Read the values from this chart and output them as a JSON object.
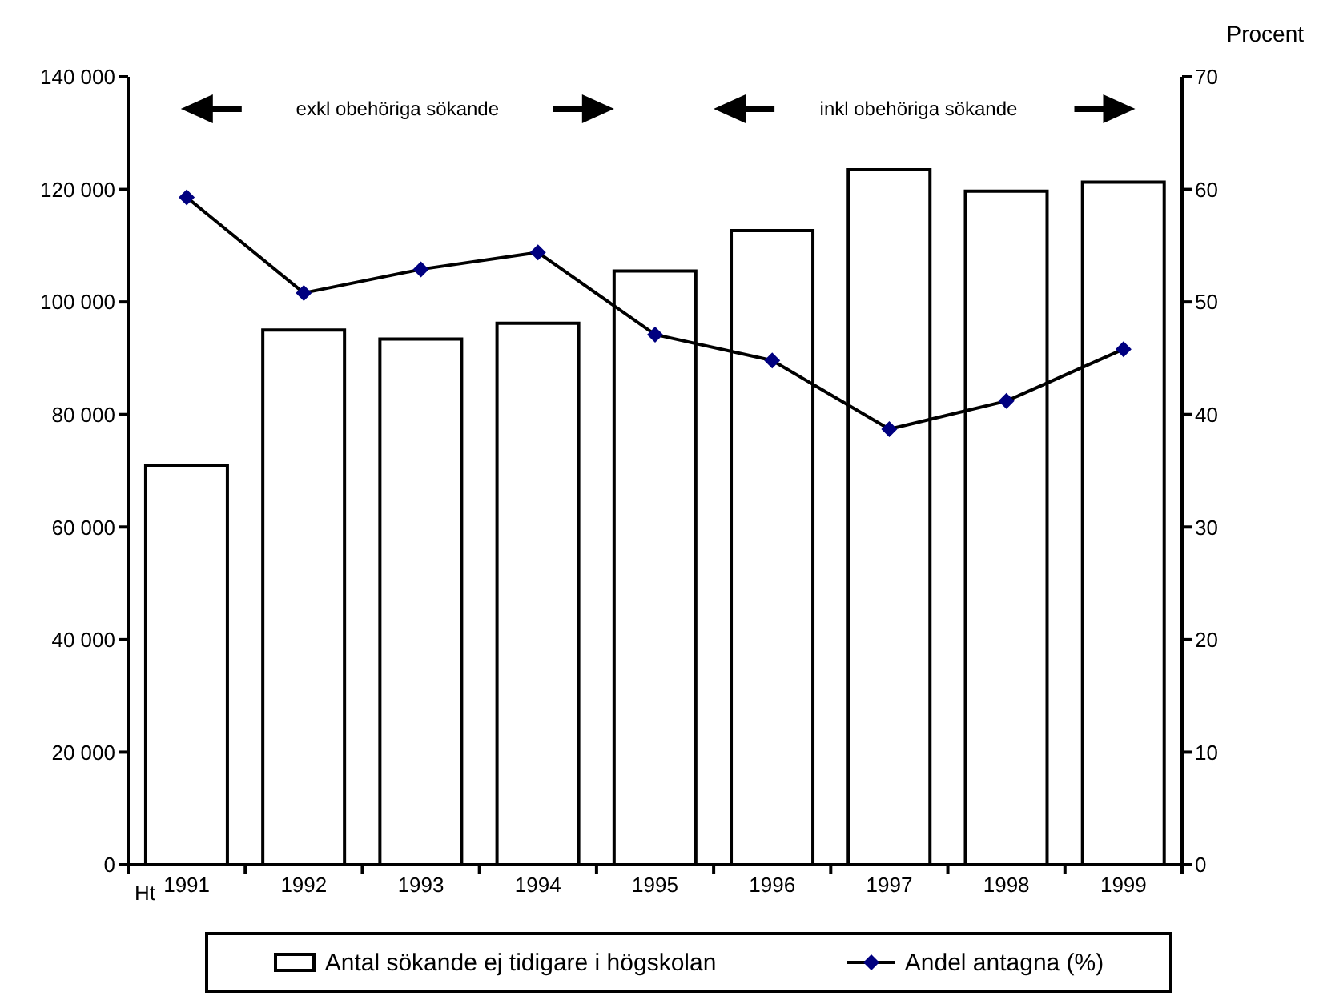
{
  "chart_data": {
    "type": "bar",
    "categories": [
      "1991",
      "1992",
      "1993",
      "1994",
      "1995",
      "1996",
      "1997",
      "1998",
      "1999"
    ],
    "series": [
      {
        "name": "Antal sökande ej tidigare i högskolan",
        "color": "#ffffff",
        "values": [
          71000,
          95000,
          93400,
          96200,
          105500,
          112700,
          123500,
          119700,
          121300
        ]
      },
      {
        "name": "Andel antagna (%)",
        "type": "line",
        "axis": "y2",
        "color": "#000080",
        "marker": "diamond",
        "values": [
          59.3,
          50.8,
          52.9,
          54.4,
          47.1,
          44.8,
          38.7,
          41.2,
          45.8
        ]
      }
    ],
    "ylim": [
      0,
      140000
    ],
    "yticks": [
      {
        "value": 0,
        "label": "0"
      },
      {
        "value": 20000,
        "label": "20 000"
      },
      {
        "value": 40000,
        "label": "40 000"
      },
      {
        "value": 60000,
        "label": "60 000"
      },
      {
        "value": 80000,
        "label": "80 000"
      },
      {
        "value": 100000,
        "label": "100 000"
      },
      {
        "value": 120000,
        "label": "120 000"
      },
      {
        "value": 140000,
        "label": "140 000"
      }
    ],
    "y2lim": [
      0,
      70
    ],
    "y2ticks": [
      0,
      10,
      20,
      30,
      40,
      50,
      60,
      70
    ],
    "y2label": "Procent",
    "annotations": [
      "exkl obehöriga sökande",
      "inkl obehöriga sökande",
      "Ht"
    ],
    "legend": "bottom"
  }
}
